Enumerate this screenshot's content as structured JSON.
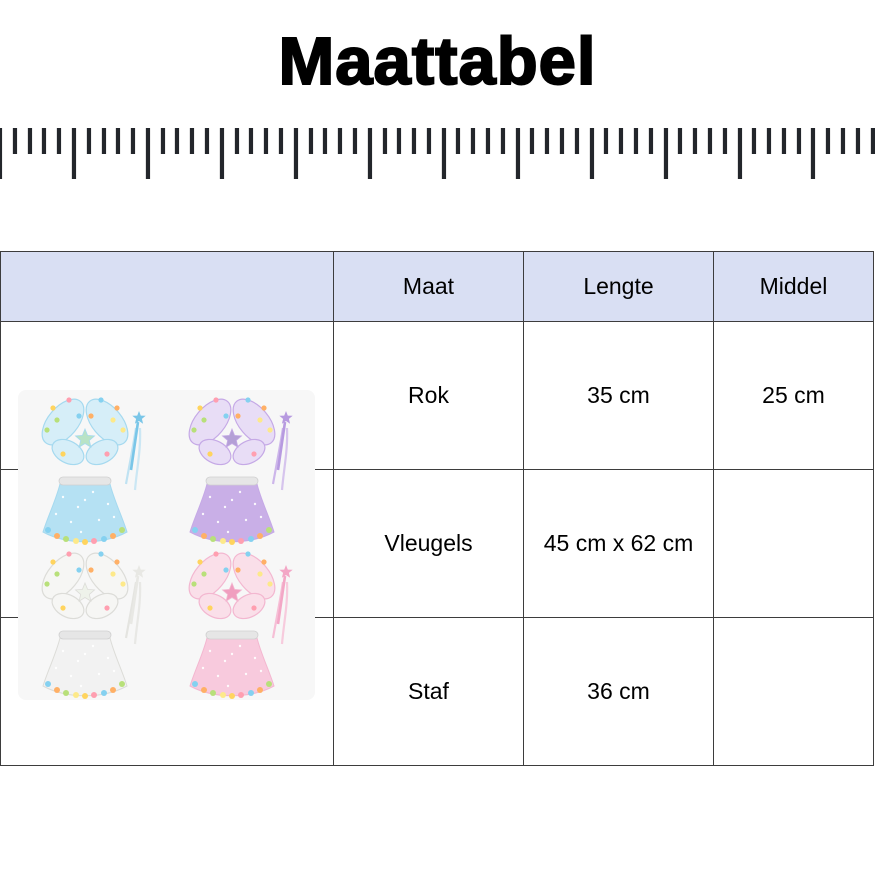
{
  "title": "Maattabel",
  "ruler": {
    "tick_color": "#23262b"
  },
  "table": {
    "header_bg": "#d9dff3",
    "border_color": "#3d3d3d",
    "headers": [
      "",
      "Maat",
      "Lengte",
      "Middel"
    ],
    "rows": [
      {
        "maat": "Rok",
        "lengte": "35 cm",
        "middel": "25 cm"
      },
      {
        "maat": "Vleugels",
        "lengte": "45 cm x 62 cm",
        "middel": ""
      },
      {
        "maat": "Staf",
        "lengte": "36 cm",
        "middel": ""
      }
    ]
  },
  "product_image": {
    "background": "#f7f7f7",
    "pompom_palette": [
      "#ffd45e",
      "#ff9fb0",
      "#85d1f0",
      "#ffb066",
      "#b8e07a",
      "#fde98a"
    ],
    "sets": [
      {
        "name": "blue",
        "colors": {
          "wing": "#d6eef8",
          "wing_edge": "#a5d9ef",
          "star": "#b8e3c6",
          "skirt": "#b5e1f3",
          "wand": "#7ac6e8",
          "ribbon": "#bfe2f2"
        }
      },
      {
        "name": "purple",
        "colors": {
          "wing": "#e8ddf6",
          "wing_edge": "#c5a9e6",
          "star": "#b4a0d6",
          "skirt": "#c9afe7",
          "wand": "#b79ae0",
          "ribbon": "#cdb6ea"
        }
      },
      {
        "name": "white",
        "colors": {
          "wing": "#f6f6f4",
          "wing_edge": "#dcdcd8",
          "star": "#eef2ea",
          "skirt": "#f2f2f2",
          "wand": "#e8e8e4",
          "ribbon": "#e4e4e0"
        }
      },
      {
        "name": "pink",
        "colors": {
          "wing": "#fadfe9",
          "wing_edge": "#f3b7d0",
          "star": "#f09ebf",
          "skirt": "#f8cadd",
          "wand": "#f3a7c6",
          "ribbon": "#f6bfd6"
        }
      }
    ]
  }
}
